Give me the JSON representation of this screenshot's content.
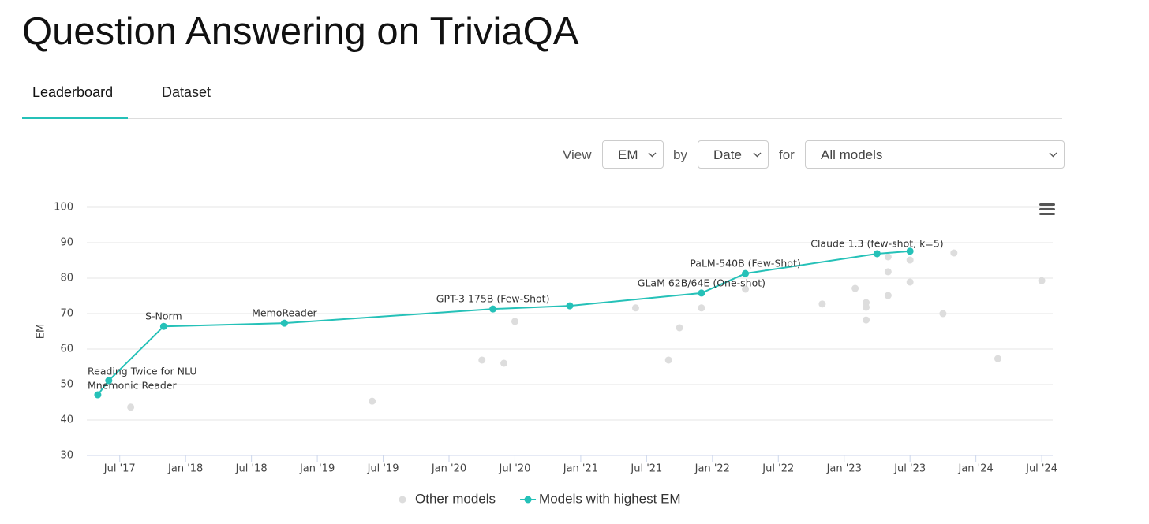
{
  "header": {
    "title": "Question Answering on TriviaQA"
  },
  "tabs": [
    "Leaderboard",
    "Dataset"
  ],
  "active_tab": 0,
  "controls": [
    {
      "label": "View",
      "value": "EM"
    },
    {
      "label": "by",
      "value": "Date"
    },
    {
      "label": "for",
      "value": "All models"
    }
  ],
  "chart_data": {
    "type": "line",
    "y_label": "EM",
    "xlim": [
      "2017-04",
      "2024-08"
    ],
    "xticks": [
      {
        "value": "2017-07",
        "label": "Jul '17"
      },
      {
        "value": "2018-01",
        "label": "Jan '18"
      },
      {
        "value": "2018-07",
        "label": "Jul '18"
      },
      {
        "value": "2019-01",
        "label": "Jan '19"
      },
      {
        "value": "2019-07",
        "label": "Jul '19"
      },
      {
        "value": "2020-01",
        "label": "Jan '20"
      },
      {
        "value": "2020-07",
        "label": "Jul '20"
      },
      {
        "value": "2021-01",
        "label": "Jan '21"
      },
      {
        "value": "2021-07",
        "label": "Jul '21"
      },
      {
        "value": "2022-01",
        "label": "Jan '22"
      },
      {
        "value": "2022-07",
        "label": "Jul '22"
      },
      {
        "value": "2023-01",
        "label": "Jan '23"
      },
      {
        "value": "2023-07",
        "label": "Jul '23"
      },
      {
        "value": "2024-01",
        "label": "Jan '24"
      },
      {
        "value": "2024-07",
        "label": "Jul '24"
      }
    ],
    "ylim": [
      30,
      100
    ],
    "yticks": [
      30,
      40,
      50,
      60,
      70,
      80,
      90,
      100
    ],
    "grid": true,
    "legend": "bottom",
    "series": [
      {
        "name": "Other models",
        "color": "#dddddd",
        "show_line": false,
        "x": [
          "2017-08",
          "2019-06",
          "2020-04",
          "2020-06",
          "2020-07",
          "2021-06",
          "2021-09",
          "2021-10",
          "2021-12",
          "2022-04",
          "2022-11",
          "2023-02",
          "2023-03",
          "2023-03",
          "2023-03",
          "2023-05",
          "2023-05",
          "2023-05",
          "2023-07",
          "2023-07",
          "2023-10",
          "2023-11",
          "2024-03",
          "2024-07"
        ],
        "values": [
          43.6,
          45.3,
          56.9,
          56.0,
          67.8,
          71.6,
          56.9,
          66.0,
          71.6,
          76.9,
          72.7,
          77.1,
          73.1,
          71.8,
          68.2,
          86.0,
          81.8,
          75.1,
          85.1,
          78.9,
          70.0,
          87.1,
          57.3,
          79.3
        ]
      },
      {
        "name": "Models with highest EM",
        "color": "#25c1b8",
        "show_line": true,
        "x": [
          "2017-05",
          "2017-06",
          "2017-11",
          "2018-10",
          "2020-05",
          "2020-12",
          "2021-12",
          "2022-04",
          "2023-04",
          "2023-07"
        ],
        "values": [
          47.1,
          51.1,
          66.4,
          67.3,
          71.3,
          72.2,
          75.8,
          81.3,
          86.9,
          87.6
        ],
        "labels": [
          "Mnemonic Reader",
          "Reading Twice for NLU",
          "S-Norm",
          "MemoReader",
          "GPT-3 175B (Few-Shot)",
          null,
          "GLaM 62B/64E (One-shot)",
          "PaLM-540B (Few-Shot)",
          "Claude 1.3 (few-shot, k=5)",
          null
        ]
      }
    ]
  }
}
